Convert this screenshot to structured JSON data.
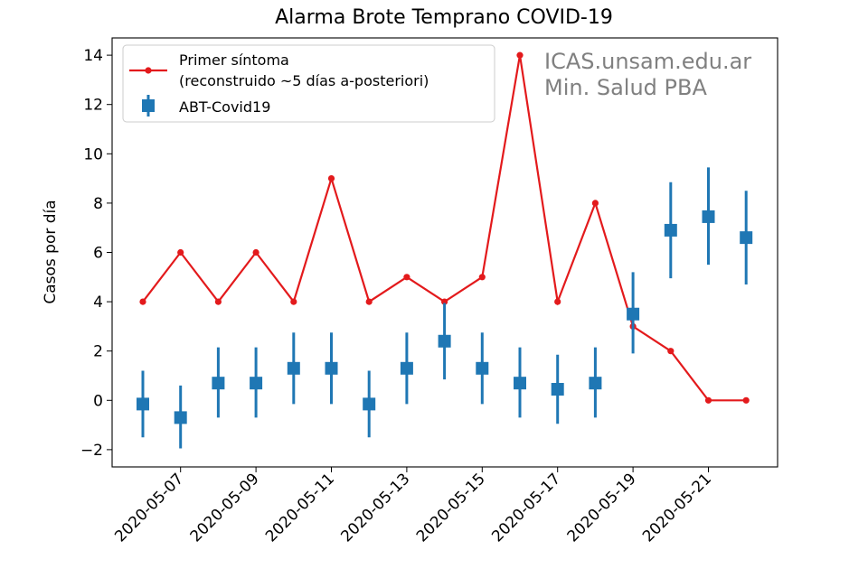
{
  "chart_data": {
    "type": "line",
    "title": "Alarma Brote Temprano COVID-19",
    "xlabel": "",
    "ylabel": "Casos por día",
    "x_dates": [
      "2020-05-06",
      "2020-05-07",
      "2020-05-08",
      "2020-05-09",
      "2020-05-10",
      "2020-05-11",
      "2020-05-12",
      "2020-05-13",
      "2020-05-14",
      "2020-05-15",
      "2020-05-16",
      "2020-05-17",
      "2020-05-18",
      "2020-05-19",
      "2020-05-20",
      "2020-05-21",
      "2020-05-22"
    ],
    "x_ticks": [
      "2020-05-07",
      "2020-05-09",
      "2020-05-11",
      "2020-05-13",
      "2020-05-15",
      "2020-05-17",
      "2020-05-19",
      "2020-05-21"
    ],
    "ylim": [
      -2.7,
      14.7
    ],
    "y_ticks": [
      -2,
      0,
      2,
      4,
      6,
      8,
      10,
      12,
      14
    ],
    "y_tick_labels": [
      "−2",
      "0",
      "2",
      "4",
      "6",
      "8",
      "10",
      "12",
      "14"
    ],
    "series": [
      {
        "name": "Primer síntoma\n(reconstruido ~5 días a-posteriori)",
        "kind": "line-marker",
        "color": "#e31a1c",
        "values": [
          4,
          6,
          4,
          6,
          4,
          9,
          4,
          5,
          4,
          5,
          14,
          4,
          8,
          3,
          2,
          0,
          0
        ]
      },
      {
        "name": "ABT-Covid19",
        "kind": "errorbar",
        "color": "#1f77b4",
        "values": [
          -0.15,
          -0.7,
          0.7,
          0.7,
          1.3,
          1.3,
          -0.15,
          1.3,
          2.4,
          1.3,
          0.7,
          0.45,
          0.7,
          3.5,
          6.9,
          7.45,
          6.6
        ],
        "lower": [
          -1.5,
          -1.95,
          -0.7,
          -0.7,
          -0.15,
          -0.15,
          -1.5,
          -0.15,
          0.85,
          -0.15,
          -0.7,
          -0.95,
          -0.7,
          1.9,
          4.95,
          5.5,
          4.7
        ],
        "upper": [
          1.2,
          0.6,
          2.15,
          2.15,
          2.75,
          2.75,
          1.2,
          2.75,
          3.95,
          2.75,
          2.15,
          1.85,
          2.15,
          5.2,
          8.85,
          9.45,
          8.5
        ]
      }
    ],
    "legend": {
      "placement": "top-left",
      "line1_label": "Primer síntoma",
      "line1_label2": "(reconstruido ~5 días a-posteriori)",
      "series2_label": "ABT-Covid19"
    },
    "annotations": [
      "ICAS.unsam.edu.ar",
      "Min. Salud PBA"
    ],
    "grid": false
  }
}
